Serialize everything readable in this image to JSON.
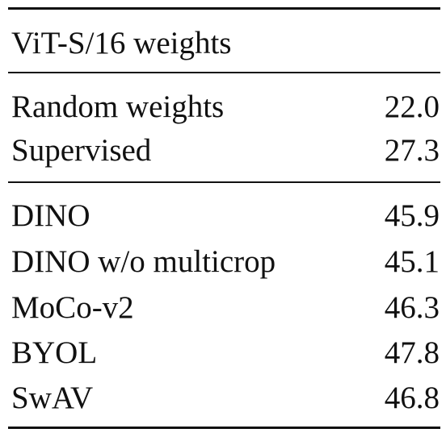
{
  "table": {
    "header": "ViT-S/16 weights",
    "baselines": [
      {
        "method": "Random weights",
        "value": "22.0"
      },
      {
        "method": "Supervised",
        "value": "27.3"
      }
    ],
    "ssl_methods": [
      {
        "method": "DINO",
        "value": "45.9"
      },
      {
        "method": "DINO w/o multicrop",
        "value": "45.1"
      },
      {
        "method": "MoCo-v2",
        "value": "46.3"
      },
      {
        "method": "BYOL",
        "value": "47.8"
      },
      {
        "method": "SwAV",
        "value": "46.8"
      }
    ]
  }
}
